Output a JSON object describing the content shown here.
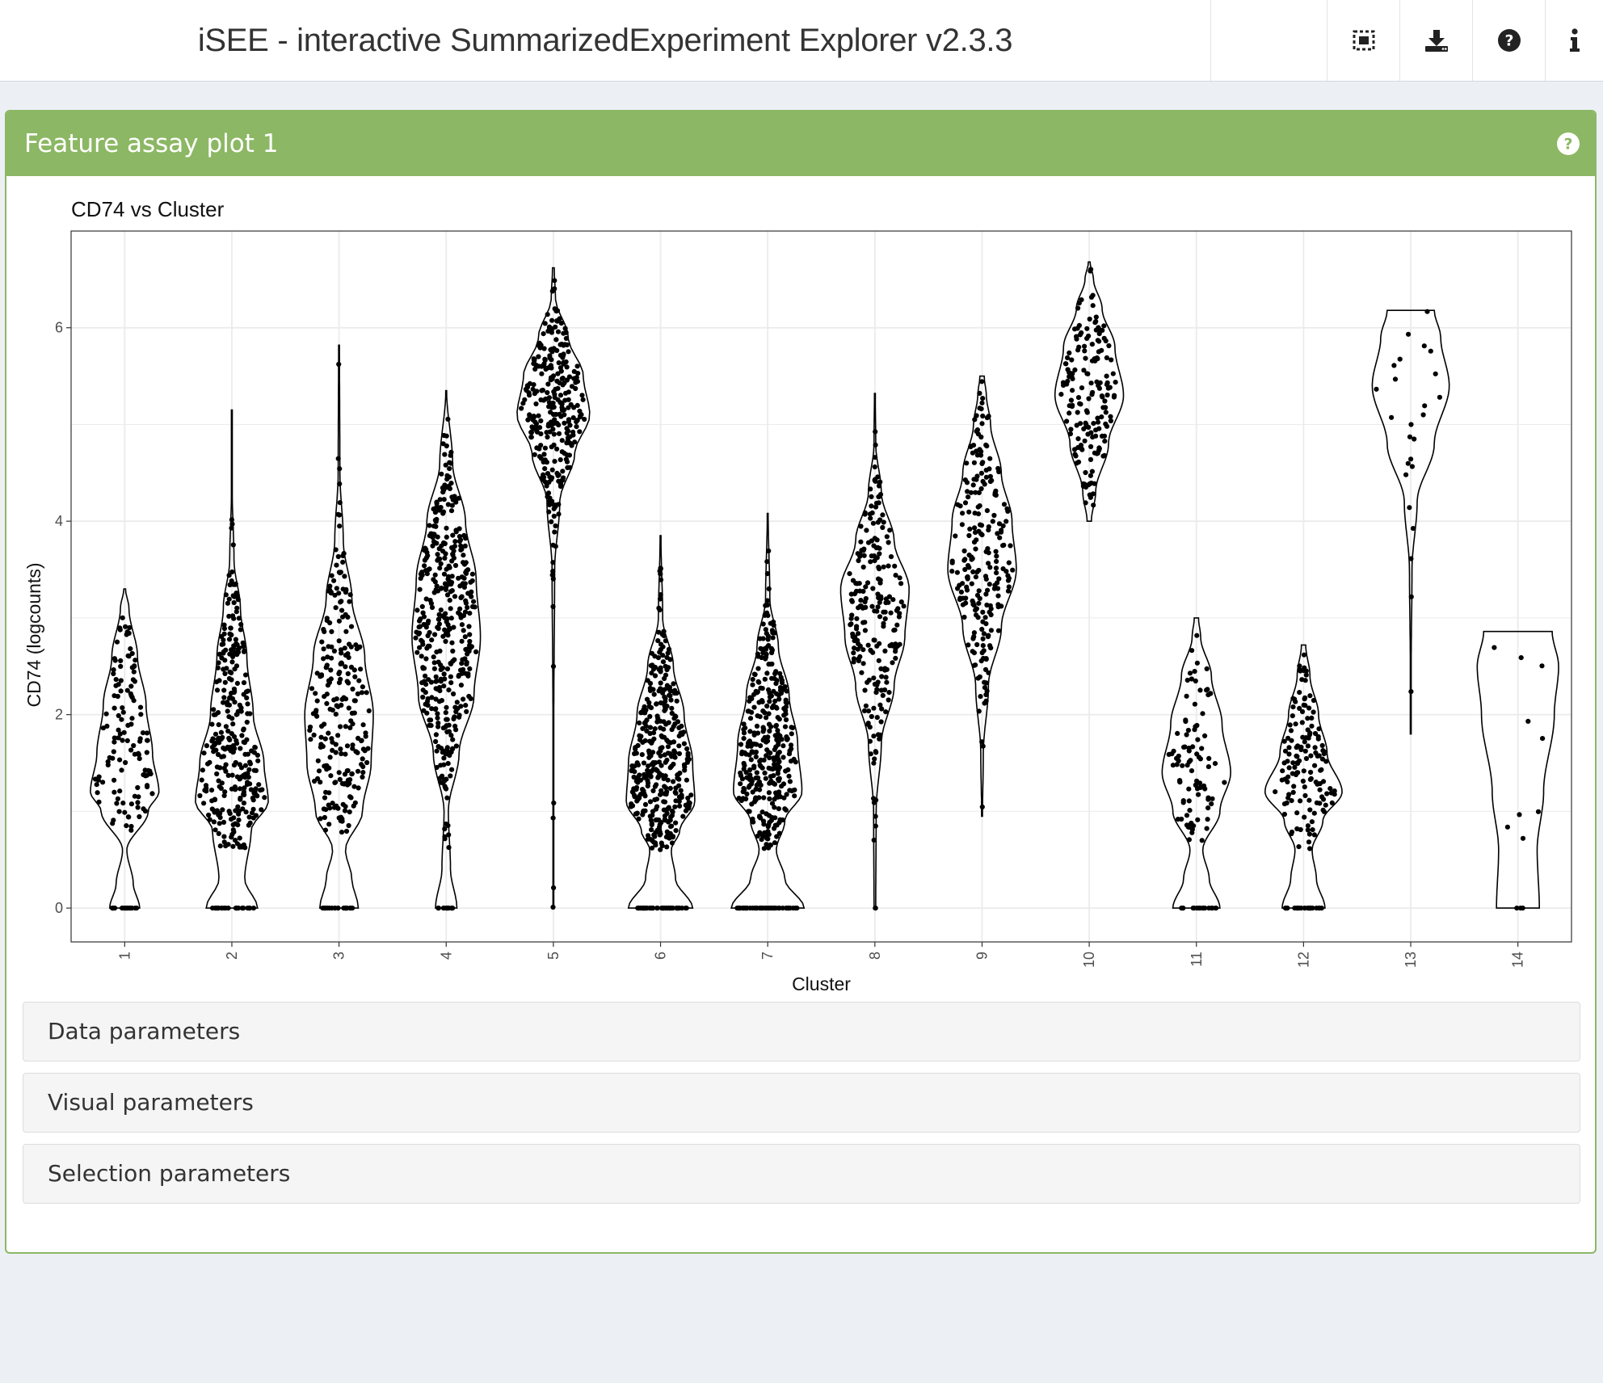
{
  "header": {
    "title": "iSEE - interactive SummarizedExperiment Explorer v2.3.3",
    "icons": [
      "screenshot-icon",
      "download-icon",
      "question-circle-icon",
      "info-icon"
    ]
  },
  "panel": {
    "title": "Feature assay plot 1",
    "color": "#8cb764",
    "sections": [
      "Data parameters",
      "Visual parameters",
      "Selection parameters"
    ]
  },
  "chart_data": {
    "type": "violin",
    "title": "CD74 vs Cluster",
    "xlabel": "Cluster",
    "ylabel": "CD74 (logcounts)",
    "ylim": [
      -0.35,
      7.0
    ],
    "yticks": [
      0,
      2,
      4,
      6
    ],
    "grid": true,
    "categories": [
      "1",
      "2",
      "3",
      "4",
      "5",
      "6",
      "7",
      "8",
      "9",
      "10",
      "11",
      "12",
      "13",
      "14"
    ],
    "series": [
      {
        "category": "1",
        "min": 0,
        "max": 3.3,
        "zero_fraction": 0.12,
        "density": [
          [
            0,
            0.35
          ],
          [
            0.25,
            0.2
          ],
          [
            0.6,
            0.05
          ],
          [
            1.0,
            0.55
          ],
          [
            1.2,
            0.8
          ],
          [
            1.6,
            0.65
          ],
          [
            2.1,
            0.5
          ],
          [
            2.6,
            0.3
          ],
          [
            3.1,
            0.1
          ],
          [
            3.3,
            0.02
          ]
        ],
        "n_points": 140
      },
      {
        "category": "2",
        "min": 0,
        "max": 5.15,
        "zero_fraction": 0.08,
        "density": [
          [
            0,
            0.6
          ],
          [
            0.3,
            0.3
          ],
          [
            0.8,
            0.45
          ],
          [
            1.1,
            0.85
          ],
          [
            1.5,
            0.75
          ],
          [
            2.0,
            0.5
          ],
          [
            2.6,
            0.35
          ],
          [
            3.1,
            0.2
          ],
          [
            3.6,
            0.05
          ],
          [
            4.3,
            0.01
          ],
          [
            5.15,
            0.01
          ]
        ],
        "n_points": 330
      },
      {
        "category": "3",
        "min": 0,
        "max": 5.82,
        "zero_fraction": 0.08,
        "density": [
          [
            0,
            0.45
          ],
          [
            0.3,
            0.3
          ],
          [
            0.6,
            0.15
          ],
          [
            1.0,
            0.55
          ],
          [
            1.5,
            0.75
          ],
          [
            2.0,
            0.8
          ],
          [
            2.6,
            0.6
          ],
          [
            3.2,
            0.3
          ],
          [
            3.8,
            0.1
          ],
          [
            4.5,
            0.02
          ],
          [
            5.82,
            0.01
          ]
        ],
        "n_points": 260
      },
      {
        "category": "4",
        "min": 0,
        "max": 5.35,
        "zero_fraction": 0.03,
        "density": [
          [
            0,
            0.25
          ],
          [
            0.4,
            0.1
          ],
          [
            1.0,
            0.05
          ],
          [
            1.6,
            0.3
          ],
          [
            2.2,
            0.65
          ],
          [
            2.8,
            0.8
          ],
          [
            3.4,
            0.7
          ],
          [
            4.0,
            0.45
          ],
          [
            4.6,
            0.15
          ],
          [
            5.35,
            0.01
          ]
        ],
        "n_points": 420
      },
      {
        "category": "5",
        "min": 0,
        "max": 6.62,
        "zero_fraction": 0.0,
        "density": [
          [
            0,
            0.01
          ],
          [
            2.0,
            0.01
          ],
          [
            3.5,
            0.03
          ],
          [
            4.2,
            0.15
          ],
          [
            4.7,
            0.5
          ],
          [
            5.1,
            0.85
          ],
          [
            5.5,
            0.7
          ],
          [
            5.9,
            0.35
          ],
          [
            6.3,
            0.05
          ],
          [
            6.62,
            0.02
          ]
        ],
        "n_points": 300
      },
      {
        "category": "6",
        "min": 0,
        "max": 3.85,
        "zero_fraction": 0.12,
        "density": [
          [
            0,
            0.75
          ],
          [
            0.3,
            0.35
          ],
          [
            0.6,
            0.25
          ],
          [
            0.8,
            0.45
          ],
          [
            1.1,
            0.8
          ],
          [
            1.5,
            0.75
          ],
          [
            2.0,
            0.55
          ],
          [
            2.5,
            0.3
          ],
          [
            3.0,
            0.05
          ],
          [
            3.85,
            0.01
          ]
        ],
        "n_points": 420
      },
      {
        "category": "7",
        "min": 0,
        "max": 4.08,
        "zero_fraction": 0.12,
        "density": [
          [
            0,
            0.85
          ],
          [
            0.3,
            0.4
          ],
          [
            0.6,
            0.2
          ],
          [
            0.9,
            0.4
          ],
          [
            1.2,
            0.8
          ],
          [
            1.7,
            0.7
          ],
          [
            2.2,
            0.5
          ],
          [
            2.7,
            0.25
          ],
          [
            3.2,
            0.05
          ],
          [
            4.08,
            0.01
          ]
        ],
        "n_points": 400
      },
      {
        "category": "8",
        "min": 0,
        "max": 5.32,
        "zero_fraction": 0.01,
        "density": [
          [
            0,
            0.02
          ],
          [
            1.0,
            0.03
          ],
          [
            1.7,
            0.15
          ],
          [
            2.3,
            0.45
          ],
          [
            2.8,
            0.7
          ],
          [
            3.3,
            0.8
          ],
          [
            3.8,
            0.45
          ],
          [
            4.3,
            0.15
          ],
          [
            4.8,
            0.02
          ],
          [
            5.32,
            0.01
          ]
        ],
        "n_points": 230
      },
      {
        "category": "9",
        "min": 0.95,
        "max": 5.5,
        "zero_fraction": 0.0,
        "density": [
          [
            0.95,
            0.01
          ],
          [
            1.6,
            0.03
          ],
          [
            2.3,
            0.15
          ],
          [
            2.9,
            0.45
          ],
          [
            3.5,
            0.8
          ],
          [
            4.0,
            0.7
          ],
          [
            4.5,
            0.45
          ],
          [
            5.0,
            0.2
          ],
          [
            5.3,
            0.1
          ],
          [
            5.5,
            0.05
          ]
        ],
        "n_points": 230
      },
      {
        "category": "10",
        "min": 4.0,
        "max": 6.68,
        "zero_fraction": 0.0,
        "density": [
          [
            4.0,
            0.05
          ],
          [
            4.3,
            0.15
          ],
          [
            4.8,
            0.45
          ],
          [
            5.3,
            0.8
          ],
          [
            5.8,
            0.6
          ],
          [
            6.2,
            0.3
          ],
          [
            6.5,
            0.1
          ],
          [
            6.68,
            0.02
          ]
        ],
        "n_points": 170
      },
      {
        "category": "11",
        "min": 0,
        "max": 3.0,
        "zero_fraction": 0.15,
        "density": [
          [
            0,
            0.55
          ],
          [
            0.3,
            0.3
          ],
          [
            0.6,
            0.15
          ],
          [
            1.0,
            0.55
          ],
          [
            1.4,
            0.8
          ],
          [
            1.9,
            0.6
          ],
          [
            2.4,
            0.35
          ],
          [
            2.8,
            0.1
          ],
          [
            3.0,
            0.05
          ]
        ],
        "n_points": 110
      },
      {
        "category": "12",
        "min": 0,
        "max": 2.72,
        "zero_fraction": 0.15,
        "density": [
          [
            0,
            0.5
          ],
          [
            0.3,
            0.3
          ],
          [
            0.6,
            0.2
          ],
          [
            0.9,
            0.45
          ],
          [
            1.2,
            0.9
          ],
          [
            1.6,
            0.55
          ],
          [
            2.0,
            0.35
          ],
          [
            2.4,
            0.15
          ],
          [
            2.72,
            0.05
          ]
        ],
        "n_points": 170
      },
      {
        "category": "13",
        "min": 1.8,
        "max": 6.18,
        "zero_fraction": 0.0,
        "density": [
          [
            1.8,
            0.01
          ],
          [
            2.5,
            0.01
          ],
          [
            3.5,
            0.03
          ],
          [
            4.2,
            0.15
          ],
          [
            4.8,
            0.55
          ],
          [
            5.4,
            0.9
          ],
          [
            5.9,
            0.7
          ],
          [
            6.18,
            0.55
          ]
        ],
        "n_points": 25
      },
      {
        "category": "14",
        "min": 0,
        "max": 2.86,
        "zero_fraction": 0.25,
        "density": [
          [
            0,
            0.5
          ],
          [
            0.6,
            0.45
          ],
          [
            1.2,
            0.6
          ],
          [
            2.0,
            0.85
          ],
          [
            2.5,
            0.95
          ],
          [
            2.86,
            0.8
          ]
        ],
        "n_points": 12
      }
    ]
  }
}
